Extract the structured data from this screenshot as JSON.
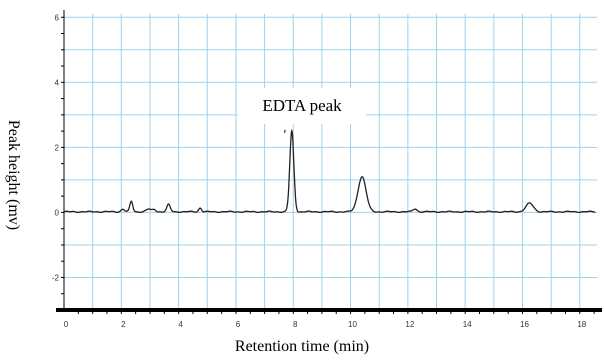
{
  "chart_data": {
    "type": "line",
    "title": "",
    "xlabel": "Retention time (min)",
    "ylabel": "Peak height (mv)",
    "xlim": [
      0,
      18.6
    ],
    "ylim": [
      -3,
      6.1
    ],
    "x_ticks": [
      0,
      2,
      4,
      6,
      8,
      10,
      12,
      14,
      16,
      18
    ],
    "y_ticks": [
      -2,
      0,
      2,
      4,
      6
    ],
    "grid": true,
    "colors": {
      "grid": "#9fd0ea",
      "line": "#222222",
      "axis": "#000000"
    },
    "annotation": {
      "text": "EDTA peak",
      "x": 7.95,
      "y": 2.6
    },
    "baseline": 0.02,
    "peaks": [
      {
        "x": 2.05,
        "height": 0.08,
        "width": 0.06
      },
      {
        "x": 2.35,
        "height": 0.32,
        "width": 0.05
      },
      {
        "x": 2.95,
        "height": 0.08,
        "width": 0.08
      },
      {
        "x": 3.15,
        "height": 0.07,
        "width": 0.06
      },
      {
        "x": 3.65,
        "height": 0.22,
        "width": 0.06
      },
      {
        "x": 4.75,
        "height": 0.12,
        "width": 0.05
      },
      {
        "x": 7.95,
        "height": 2.48,
        "width": 0.07
      },
      {
        "x": 10.4,
        "height": 1.08,
        "width": 0.14
      },
      {
        "x": 12.25,
        "height": 0.09,
        "width": 0.07
      },
      {
        "x": 16.25,
        "height": 0.26,
        "width": 0.13
      }
    ]
  }
}
